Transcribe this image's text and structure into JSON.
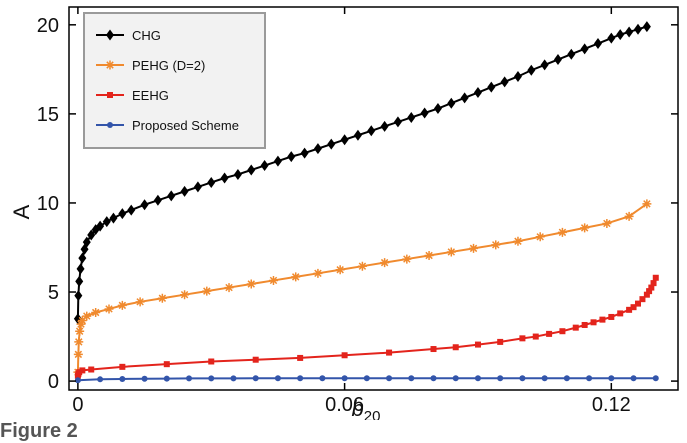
{
  "caption": "Figure 2",
  "chart_data": {
    "type": "line",
    "title": "",
    "xlabel": "b20",
    "xlabel_base": "b",
    "xlabel_sub": "20",
    "ylabel": "A",
    "xlim": [
      -0.002,
      0.135
    ],
    "ylim": [
      -0.5,
      21
    ],
    "xticks": [
      0,
      0.06,
      0.12
    ],
    "xtick_labels": [
      "0",
      "0.06",
      "0.12"
    ],
    "yticks": [
      0,
      5,
      10,
      15,
      20
    ],
    "ytick_labels": [
      "0",
      "5",
      "10",
      "15",
      "20"
    ],
    "grid": false,
    "legend_position": "top-left",
    "series": [
      {
        "name": "CHG",
        "color": "#000000",
        "marker": "diamond",
        "x": [
          0,
          0.0001,
          0.0003,
          0.0006,
          0.001,
          0.0015,
          0.002,
          0.003,
          0.004,
          0.005,
          0.0065,
          0.008,
          0.01,
          0.012,
          0.015,
          0.018,
          0.021,
          0.024,
          0.027,
          0.03,
          0.033,
          0.036,
          0.039,
          0.042,
          0.045,
          0.048,
          0.051,
          0.054,
          0.057,
          0.06,
          0.063,
          0.066,
          0.069,
          0.072,
          0.075,
          0.078,
          0.081,
          0.084,
          0.087,
          0.09,
          0.093,
          0.096,
          0.099,
          0.102,
          0.105,
          0.108,
          0.111,
          0.114,
          0.117,
          0.12,
          0.122,
          0.124,
          0.126,
          0.128
        ],
        "y": [
          3.5,
          4.8,
          5.6,
          6.3,
          6.9,
          7.4,
          7.8,
          8.2,
          8.5,
          8.7,
          8.95,
          9.15,
          9.4,
          9.6,
          9.9,
          10.15,
          10.4,
          10.65,
          10.9,
          11.15,
          11.4,
          11.6,
          11.85,
          12.1,
          12.35,
          12.6,
          12.8,
          13.05,
          13.3,
          13.55,
          13.8,
          14.05,
          14.3,
          14.55,
          14.8,
          15.05,
          15.3,
          15.6,
          15.9,
          16.2,
          16.5,
          16.8,
          17.1,
          17.45,
          17.75,
          18.05,
          18.35,
          18.65,
          18.95,
          19.25,
          19.45,
          19.6,
          19.75,
          19.9
        ]
      },
      {
        "name": "PEHG (D=2)",
        "color": "#f08a2e",
        "marker": "star",
        "x": [
          0,
          0.0001,
          0.0002,
          0.0004,
          0.0007,
          0.001,
          0.002,
          0.004,
          0.007,
          0.01,
          0.014,
          0.019,
          0.024,
          0.029,
          0.034,
          0.039,
          0.044,
          0.049,
          0.054,
          0.059,
          0.064,
          0.069,
          0.074,
          0.079,
          0.084,
          0.089,
          0.094,
          0.099,
          0.104,
          0.109,
          0.114,
          0.119,
          0.124,
          0.128
        ],
        "y": [
          0.5,
          1.5,
          2.2,
          2.8,
          3.2,
          3.4,
          3.65,
          3.85,
          4.05,
          4.25,
          4.45,
          4.65,
          4.85,
          5.05,
          5.25,
          5.45,
          5.65,
          5.85,
          6.05,
          6.25,
          6.45,
          6.65,
          6.85,
          7.05,
          7.25,
          7.45,
          7.65,
          7.85,
          8.1,
          8.35,
          8.6,
          8.85,
          9.25,
          9.95
        ]
      },
      {
        "name": "EEHG",
        "color": "#e3241c",
        "marker": "square",
        "x": [
          0,
          0.0001,
          0.0003,
          0.001,
          0.003,
          0.01,
          0.02,
          0.03,
          0.04,
          0.05,
          0.06,
          0.07,
          0.08,
          0.085,
          0.09,
          0.095,
          0.1,
          0.103,
          0.106,
          0.109,
          0.112,
          0.114,
          0.116,
          0.118,
          0.12,
          0.122,
          0.124,
          0.125,
          0.126,
          0.127,
          0.128,
          0.1285,
          0.129,
          0.1295,
          0.13
        ],
        "y": [
          0.3,
          0.4,
          0.5,
          0.6,
          0.65,
          0.8,
          0.95,
          1.1,
          1.2,
          1.3,
          1.45,
          1.6,
          1.8,
          1.9,
          2.05,
          2.2,
          2.4,
          2.5,
          2.65,
          2.8,
          3.0,
          3.15,
          3.3,
          3.45,
          3.6,
          3.8,
          4.0,
          4.15,
          4.35,
          4.6,
          4.85,
          5.05,
          5.25,
          5.5,
          5.8
        ]
      },
      {
        "name": "Proposed Scheme",
        "color": "#3355aa",
        "marker": "circle",
        "x": [
          0,
          0.005,
          0.01,
          0.015,
          0.02,
          0.025,
          0.03,
          0.035,
          0.04,
          0.045,
          0.05,
          0.055,
          0.06,
          0.065,
          0.07,
          0.075,
          0.08,
          0.085,
          0.09,
          0.095,
          0.1,
          0.105,
          0.11,
          0.115,
          0.12,
          0.125,
          0.13
        ],
        "y": [
          0.05,
          0.1,
          0.12,
          0.13,
          0.14,
          0.15,
          0.15,
          0.15,
          0.16,
          0.16,
          0.16,
          0.16,
          0.16,
          0.16,
          0.16,
          0.16,
          0.16,
          0.16,
          0.16,
          0.16,
          0.16,
          0.16,
          0.16,
          0.16,
          0.16,
          0.16,
          0.16
        ]
      }
    ]
  }
}
